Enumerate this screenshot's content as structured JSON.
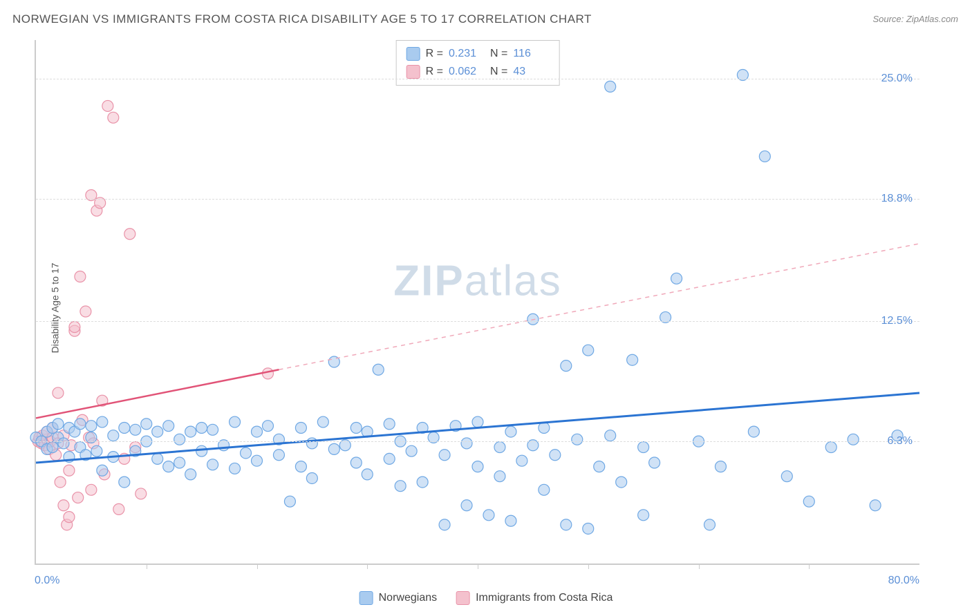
{
  "title": "NORWEGIAN VS IMMIGRANTS FROM COSTA RICA DISABILITY AGE 5 TO 17 CORRELATION CHART",
  "source": "Source: ZipAtlas.com",
  "ylabel": "Disability Age 5 to 17",
  "watermark_bold": "ZIP",
  "watermark_light": "atlas",
  "chart": {
    "type": "scatter",
    "xlim": [
      0,
      80
    ],
    "ylim": [
      0,
      27
    ],
    "xaxis_min_label": "0.0%",
    "xaxis_max_label": "80.0%",
    "yticks": [
      {
        "v": 6.3,
        "label": "6.3%"
      },
      {
        "v": 12.5,
        "label": "12.5%"
      },
      {
        "v": 18.8,
        "label": "18.8%"
      },
      {
        "v": 25.0,
        "label": "25.0%"
      }
    ],
    "xticks_count": 8,
    "background_color": "#ffffff",
    "grid_color": "#dddddd",
    "axis_color": "#cccccc",
    "series": [
      {
        "name": "Norwegians",
        "fill": "#a9cbef",
        "stroke": "#6fa8e4",
        "marker_r": 8,
        "fill_opacity": 0.55,
        "trend": {
          "x1": 0,
          "y1": 5.2,
          "x2": 80,
          "y2": 8.8,
          "color": "#2b74d2",
          "width": 3,
          "dash": "none"
        },
        "R": "0.231",
        "N": "116",
        "points": [
          [
            0,
            6.5
          ],
          [
            0.5,
            6.3
          ],
          [
            1,
            6.8
          ],
          [
            1,
            5.9
          ],
          [
            1.5,
            7.0
          ],
          [
            1.5,
            6.0
          ],
          [
            2,
            6.5
          ],
          [
            2,
            7.2
          ],
          [
            2.5,
            6.2
          ],
          [
            3,
            7.0
          ],
          [
            3,
            5.5
          ],
          [
            3.5,
            6.8
          ],
          [
            4,
            6.0
          ],
          [
            4,
            7.2
          ],
          [
            4.5,
            5.6
          ],
          [
            5,
            6.5
          ],
          [
            5,
            7.1
          ],
          [
            5.5,
            5.8
          ],
          [
            6,
            7.3
          ],
          [
            6,
            4.8
          ],
          [
            7,
            6.6
          ],
          [
            7,
            5.5
          ],
          [
            8,
            7.0
          ],
          [
            8,
            4.2
          ],
          [
            9,
            5.8
          ],
          [
            9,
            6.9
          ],
          [
            10,
            6.3
          ],
          [
            10,
            7.2
          ],
          [
            11,
            5.4
          ],
          [
            11,
            6.8
          ],
          [
            12,
            5.0
          ],
          [
            12,
            7.1
          ],
          [
            13,
            6.4
          ],
          [
            13,
            5.2
          ],
          [
            14,
            6.8
          ],
          [
            14,
            4.6
          ],
          [
            15,
            7.0
          ],
          [
            15,
            5.8
          ],
          [
            16,
            6.9
          ],
          [
            16,
            5.1
          ],
          [
            17,
            6.1
          ],
          [
            18,
            7.3
          ],
          [
            18,
            4.9
          ],
          [
            19,
            5.7
          ],
          [
            20,
            6.8
          ],
          [
            20,
            5.3
          ],
          [
            21,
            7.1
          ],
          [
            22,
            5.6
          ],
          [
            22,
            6.4
          ],
          [
            23,
            3.2
          ],
          [
            24,
            7.0
          ],
          [
            24,
            5.0
          ],
          [
            25,
            6.2
          ],
          [
            25,
            4.4
          ],
          [
            26,
            7.3
          ],
          [
            27,
            5.9
          ],
          [
            27,
            10.4
          ],
          [
            28,
            6.1
          ],
          [
            29,
            5.2
          ],
          [
            29,
            7.0
          ],
          [
            30,
            4.6
          ],
          [
            30,
            6.8
          ],
          [
            31,
            10.0
          ],
          [
            32,
            5.4
          ],
          [
            32,
            7.2
          ],
          [
            33,
            4.0
          ],
          [
            33,
            6.3
          ],
          [
            34,
            5.8
          ],
          [
            35,
            7.0
          ],
          [
            35,
            4.2
          ],
          [
            36,
            6.5
          ],
          [
            37,
            2.0
          ],
          [
            37,
            5.6
          ],
          [
            38,
            7.1
          ],
          [
            39,
            3.0
          ],
          [
            39,
            6.2
          ],
          [
            40,
            5.0
          ],
          [
            40,
            7.3
          ],
          [
            41,
            2.5
          ],
          [
            42,
            6.0
          ],
          [
            42,
            4.5
          ],
          [
            43,
            2.2
          ],
          [
            43,
            6.8
          ],
          [
            44,
            5.3
          ],
          [
            45,
            12.6
          ],
          [
            45,
            6.1
          ],
          [
            46,
            3.8
          ],
          [
            46,
            7.0
          ],
          [
            47,
            5.6
          ],
          [
            48,
            2.0
          ],
          [
            48,
            10.2
          ],
          [
            49,
            6.4
          ],
          [
            50,
            1.8
          ],
          [
            50,
            11.0
          ],
          [
            51,
            5.0
          ],
          [
            52,
            24.6
          ],
          [
            52,
            6.6
          ],
          [
            53,
            4.2
          ],
          [
            54,
            10.5
          ],
          [
            55,
            2.5
          ],
          [
            55,
            6.0
          ],
          [
            56,
            5.2
          ],
          [
            57,
            12.7
          ],
          [
            58,
            14.7
          ],
          [
            60,
            6.3
          ],
          [
            61,
            2.0
          ],
          [
            62,
            5.0
          ],
          [
            64,
            25.2
          ],
          [
            65,
            6.8
          ],
          [
            66,
            21.0
          ],
          [
            68,
            4.5
          ],
          [
            70,
            3.2
          ],
          [
            72,
            6.0
          ],
          [
            74,
            6.4
          ],
          [
            76,
            3.0
          ],
          [
            78,
            6.6
          ]
        ]
      },
      {
        "name": "Immigrants from Costa Rica",
        "fill": "#f4c1cd",
        "stroke": "#e992a8",
        "marker_r": 8,
        "fill_opacity": 0.55,
        "trend_solid": {
          "x1": 0,
          "y1": 7.5,
          "x2": 22,
          "y2": 10.0,
          "color": "#e15377",
          "width": 2.5
        },
        "trend_dashed": {
          "x1": 22,
          "y1": 10.0,
          "x2": 80,
          "y2": 16.5,
          "color": "#f0a8b9",
          "width": 1.5
        },
        "R": "0.062",
        "N": "43",
        "points": [
          [
            0.2,
            6.3
          ],
          [
            0.3,
            6.5
          ],
          [
            0.5,
            6.2
          ],
          [
            0.6,
            6.6
          ],
          [
            0.8,
            6.1
          ],
          [
            1.0,
            6.4
          ],
          [
            1.0,
            6.8
          ],
          [
            1.2,
            5.9
          ],
          [
            1.3,
            6.3
          ],
          [
            1.5,
            6.5
          ],
          [
            1.5,
            7.0
          ],
          [
            1.8,
            5.6
          ],
          [
            2.0,
            8.8
          ],
          [
            2.0,
            6.2
          ],
          [
            2.2,
            4.2
          ],
          [
            2.5,
            3.0
          ],
          [
            2.5,
            6.6
          ],
          [
            2.8,
            2.0
          ],
          [
            3.0,
            4.8
          ],
          [
            3.0,
            2.4
          ],
          [
            3.2,
            6.1
          ],
          [
            3.5,
            12.0
          ],
          [
            3.5,
            12.2
          ],
          [
            3.8,
            3.4
          ],
          [
            4.0,
            14.8
          ],
          [
            4.2,
            7.4
          ],
          [
            4.5,
            13.0
          ],
          [
            4.8,
            6.5
          ],
          [
            5.0,
            19.0
          ],
          [
            5.0,
            3.8
          ],
          [
            5.2,
            6.2
          ],
          [
            5.5,
            18.2
          ],
          [
            5.8,
            18.6
          ],
          [
            6.0,
            8.4
          ],
          [
            6.2,
            4.6
          ],
          [
            6.5,
            23.6
          ],
          [
            7.0,
            23.0
          ],
          [
            7.5,
            2.8
          ],
          [
            8.0,
            5.4
          ],
          [
            8.5,
            17.0
          ],
          [
            9.0,
            6.0
          ],
          [
            9.5,
            3.6
          ],
          [
            21.0,
            9.8
          ]
        ]
      }
    ]
  },
  "legend_bottom": {
    "series1_label": "Norwegians",
    "series2_label": "Immigrants from Costa Rica"
  }
}
